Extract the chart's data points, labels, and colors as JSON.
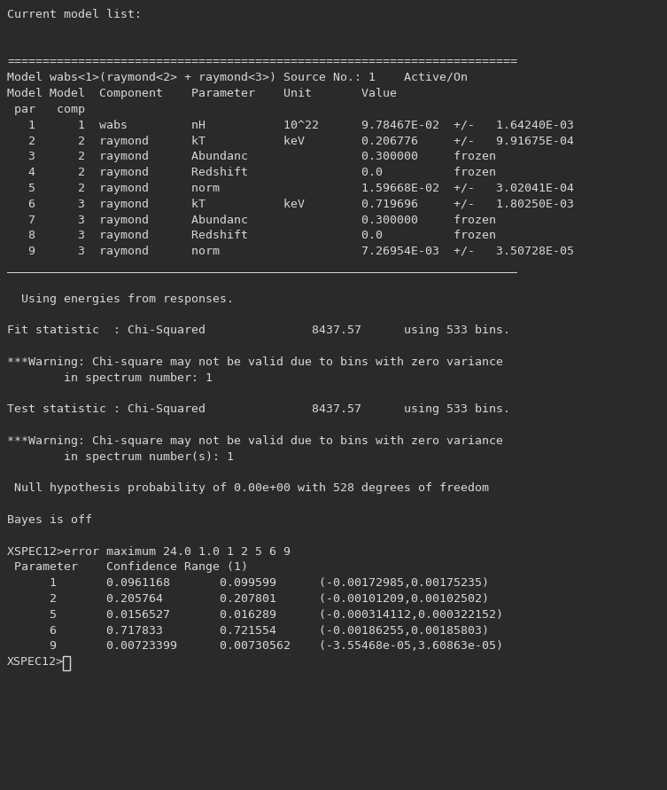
{
  "bg_color": "#2a2a2a",
  "text_color": "#d8d8d8",
  "font_size": 9.5,
  "lines": [
    "Current model list:",
    "",
    "",
    "========================================================================",
    "Model wabs<1>(raymond<2> + raymond<3>) Source No.: 1    Active/On",
    "Model Model  Component    Parameter    Unit       Value",
    " par   comp",
    "   1      1  wabs         nH           10^22      9.78467E-02  +/-   1.64240E-03",
    "   2      2  raymond      kT           keV        0.206776     +/-   9.91675E-04",
    "   3      2  raymond      Abundanc                0.300000     frozen",
    "   4      2  raymond      Redshift                0.0          frozen",
    "   5      2  raymond      norm                    1.59668E-02  +/-   3.02041E-04",
    "   6      3  raymond      kT           keV        0.719696     +/-   1.80250E-03",
    "   7      3  raymond      Abundanc                0.300000     frozen",
    "   8      3  raymond      Redshift                0.0          frozen",
    "   9      3  raymond      norm                    7.26954E-03  +/-   3.50728E-05",
    "________________________________________________________________________",
    "",
    "  Using energies from responses.",
    "",
    "Fit statistic  : Chi-Squared               8437.57      using 533 bins.",
    "",
    "***Warning: Chi-square may not be valid due to bins with zero variance",
    "        in spectrum number: 1",
    "",
    "Test statistic : Chi-Squared               8437.57      using 533 bins.",
    "",
    "***Warning: Chi-square may not be valid due to bins with zero variance",
    "        in spectrum number(s): 1",
    "",
    " Null hypothesis probability of 0.00e+00 with 528 degrees of freedom",
    "",
    "Bayes is off",
    "",
    "XSPEC12>error maximum 24.0 1.0 1 2 5 6 9",
    " Parameter    Confidence Range (1)",
    "      1       0.0961168       0.099599      (-0.00172985,0.00175235)",
    "      2       0.205764        0.207801      (-0.00101209,0.00102502)",
    "      5       0.0156527       0.016289      (-0.000314112,0.000322152)",
    "      6       0.717833        0.721554      (-0.00186255,0.00185803)",
    "      9       0.00723399      0.00730562    (-3.55468e-05,3.60863e-05)",
    "XSPEC12>"
  ],
  "cursor_line_idx": 41
}
